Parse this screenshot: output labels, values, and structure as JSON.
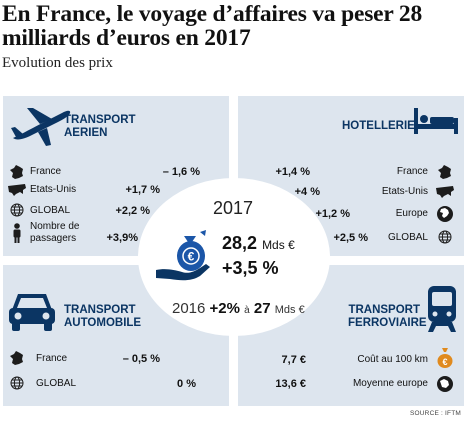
{
  "headline": {
    "title": "En France, le voyage d’affaires va peser 28 milliards d’euros en 2017",
    "subtitle": "Evolution des prix"
  },
  "colors": {
    "panel": "#dde5ee",
    "accent": "#0b3563",
    "coin": "#1b56a8"
  },
  "air": {
    "title_1": "TRANSPORT",
    "title_2": "AERIEN",
    "icon": "airplane-icon",
    "rows": [
      {
        "label": "France",
        "value": "– 1,6 %",
        "icon": "france-map-icon"
      },
      {
        "label": "Etats-Unis",
        "value": "+1,7 %",
        "icon": "usa-map-icon"
      },
      {
        "label": "GLOBAL",
        "value": "+2,2 %",
        "icon": "globe-icon"
      },
      {
        "label_1": "Nombre de",
        "label_2": "passagers",
        "value": "+3,9%",
        "icon": "person-icon"
      }
    ]
  },
  "hotel": {
    "title": "HOTELLERIE",
    "icon": "bed-icon",
    "rows": [
      {
        "label": "France",
        "value": "+1,4 %",
        "icon": "france-map-icon"
      },
      {
        "label": "Etats-Unis",
        "value": "+4 %",
        "icon": "usa-map-icon"
      },
      {
        "label": "Europe",
        "value": "+1,2 %",
        "icon": "europe-globe-icon"
      },
      {
        "label": "GLOBAL",
        "value": "+2,5 %",
        "icon": "globe-icon"
      }
    ]
  },
  "car": {
    "title_1": "TRANSPORT",
    "title_2": "AUTOMOBILE",
    "icon": "car-icon",
    "rows": [
      {
        "label": "France",
        "value": "– 0,5 %",
        "icon": "france-map-icon"
      },
      {
        "label": "GLOBAL",
        "value": "0 %",
        "icon": "globe-icon"
      }
    ]
  },
  "rail": {
    "title_1": "TRANSPORT",
    "title_2": "FERROVIAIRE",
    "icon": "train-icon",
    "rows": [
      {
        "label": "Coût au 100 km",
        "value": "7,7 €",
        "icon": "money-bag-icon"
      },
      {
        "label": "Moyenne europe",
        "value": "13,6 €",
        "icon": "euro-coin-icon"
      }
    ]
  },
  "center": {
    "year": "2017",
    "amount": "28,2",
    "amount_unit": "Mds €",
    "change": "+3,5 %",
    "prev_year": "2016",
    "prev_change": "+2%",
    "prev_link": "à",
    "prev_amount": "27",
    "prev_unit": "Mds €",
    "icon": "euro-bags-hand-icon"
  },
  "source": "SOURCE : IFTM"
}
